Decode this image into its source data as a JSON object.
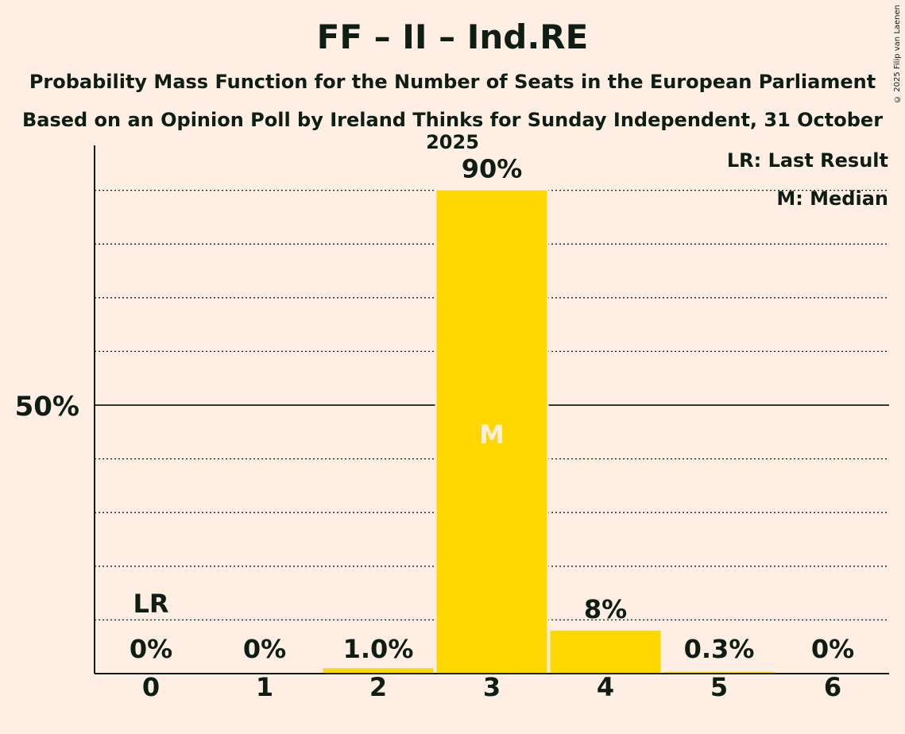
{
  "title": "FF – II – Ind.RE",
  "subtitle": "Probability Mass Function for the Number of Seats in the European Parliament",
  "subtitle2": "Based on an Opinion Poll by Ireland Thinks for Sunday Independent, 31 October 2025",
  "copyright": "© 2025 Filip van Laenen",
  "legend": {
    "lr": "LR: Last Result",
    "m": "M: Median"
  },
  "colors": {
    "background": "#FEEEE3",
    "bar": "#FFD700",
    "text": "#0F1E14",
    "median_text": "#FEEEE3"
  },
  "chart_data": {
    "type": "bar",
    "categories": [
      "0",
      "1",
      "2",
      "3",
      "4",
      "5",
      "6"
    ],
    "values": [
      0,
      0,
      1.0,
      90,
      8,
      0.3,
      0
    ],
    "value_labels": [
      "0%",
      "0%",
      "1.0%",
      "90%",
      "8%",
      "0.3%",
      "0%"
    ],
    "last_result_index": 0,
    "last_result_label": "LR",
    "median_index": 3,
    "median_label": "M",
    "ylim": [
      0,
      100
    ],
    "y_ticks": [
      {
        "value": 50,
        "label": "50%"
      }
    ],
    "gridlines": [
      10,
      20,
      30,
      40,
      60,
      70,
      80,
      90
    ],
    "legend_position": "top-right"
  }
}
